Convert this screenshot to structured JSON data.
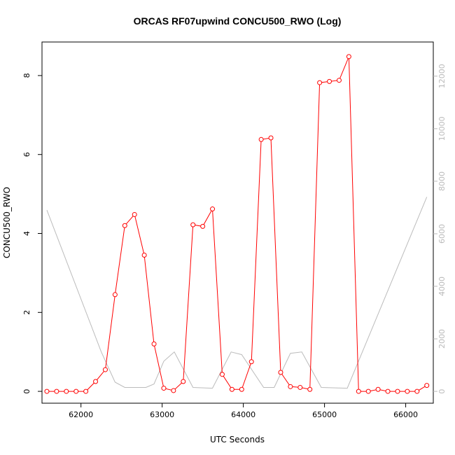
{
  "chart_data": {
    "type": "line",
    "title": "ORCAS RF07upwind CONCU500_RWO (Log)",
    "xlabel": "UTC Seconds",
    "ylabel": "CONCU500_RWO",
    "xlim": [
      61520,
      66340
    ],
    "ylim": [
      -0.3,
      8.85
    ],
    "y2lim": [
      -450,
      13300
    ],
    "x_ticks": [
      62000,
      63000,
      64000,
      65000,
      66000
    ],
    "y_ticks": [
      0,
      2,
      4,
      6,
      8
    ],
    "y2_ticks": [
      0,
      2000,
      4000,
      6000,
      8000,
      10000,
      12000
    ],
    "grid": false,
    "series": [
      {
        "axis": "left",
        "color": "#ff0000",
        "style": "line+points",
        "x": [
          61580,
          61700,
          61820,
          61940,
          62060,
          62180,
          62300,
          62420,
          62540,
          62660,
          62780,
          62900,
          63020,
          63140,
          63260,
          63380,
          63500,
          63620,
          63740,
          63860,
          63980,
          64100,
          64220,
          64340,
          64460,
          64580,
          64700,
          64820,
          64940,
          65060,
          65180,
          65300,
          65420,
          65540,
          65660,
          65780,
          65900,
          66020,
          66140,
          66260
        ],
        "y": [
          0.0,
          0.0,
          0.0,
          0.0,
          0.0,
          0.25,
          0.55,
          2.45,
          4.2,
          4.48,
          3.45,
          1.2,
          0.08,
          0.02,
          0.25,
          4.22,
          4.18,
          4.62,
          0.43,
          0.05,
          0.05,
          0.75,
          6.38,
          6.42,
          0.48,
          0.12,
          0.1,
          0.05,
          7.82,
          7.85,
          7.88,
          8.48,
          0.0,
          0.0,
          0.05,
          0.0,
          0.0,
          0.0,
          0.0,
          0.15
        ]
      },
      {
        "axis": "right",
        "color": "#bbbbbb",
        "style": "line",
        "x": [
          61580,
          62250,
          62420,
          62540,
          62800,
          62900,
          63020,
          63150,
          63380,
          63620,
          63850,
          63980,
          64250,
          64380,
          64580,
          64720,
          64960,
          65280,
          66260
        ],
        "y": [
          6900,
          1500,
          350,
          150,
          150,
          280,
          1150,
          1500,
          150,
          120,
          1500,
          1400,
          150,
          150,
          1450,
          1500,
          150,
          120,
          7400
        ]
      }
    ]
  }
}
